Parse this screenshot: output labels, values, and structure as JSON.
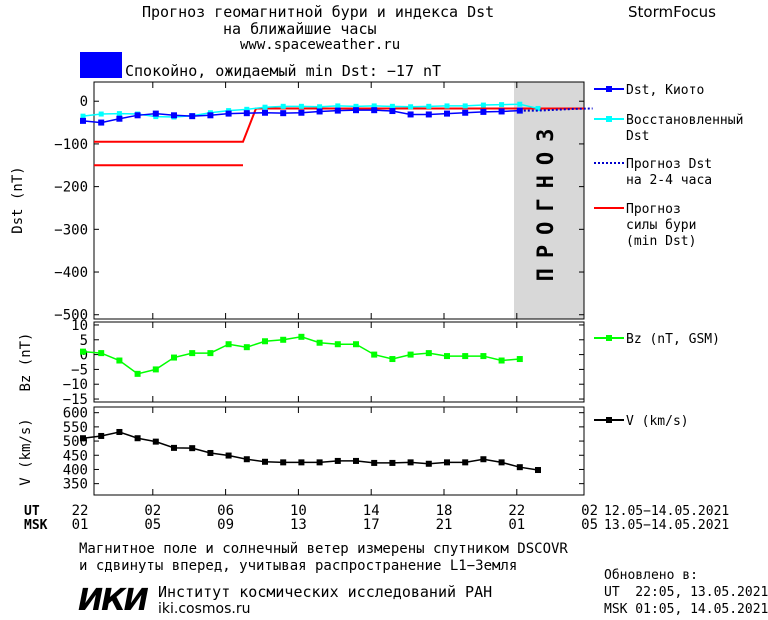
{
  "header": {
    "title_line1": "Прогноз геомагнитной бури и индекса Dst",
    "title_line2": "на ближайшие часы",
    "url": "www.spaceweather.ru",
    "brand": "StormFocus",
    "status_text": "Спокойно, ожидаемый min Dst: −17 nT",
    "status_color": "#0000ff"
  },
  "legend": {
    "dst_kyoto": "Dst, Киото",
    "restored_1": "Восстановленный",
    "restored_2": "Dst",
    "forecast_dst_1": "Прогноз Dst",
    "forecast_dst_2": "на 2-4 часа",
    "storm_1": "Прогноз",
    "storm_2": "силы бури",
    "storm_3": "(min Dst)",
    "bz": "Bz (nT, GSM)",
    "v": "V (km/s)"
  },
  "forecast_band_label": "ПРОГНОЗ",
  "time_axis": {
    "ut_label": "UT",
    "msk_label": "MSK",
    "ut_ticks": [
      "22",
      "02",
      "06",
      "10",
      "14",
      "18",
      "22",
      "02"
    ],
    "msk_ticks": [
      "01",
      "05",
      "09",
      "13",
      "17",
      "21",
      "01",
      "05"
    ],
    "ut_range": "12.05−14.05.2021",
    "msk_range": "13.05−14.05.2021"
  },
  "footer": {
    "note_line1": "Магнитное поле и солнечный ветер измерены спутником DSCOVR",
    "note_line2": "и сдвинуты вперед, учитывая распространение L1−Земля",
    "updated_label": "Обновлено в:",
    "updated_ut": "UT  22:05, 13.05.2021",
    "updated_msk": "MSK 01:05, 14.05.2021",
    "logo_text": "ИКИ",
    "institute": "Институт космических исследований РАН",
    "institute_url": "iki.cosmos.ru"
  },
  "chart_data": [
    {
      "type": "line",
      "panel": "dst",
      "ylabel": "Dst (nT)",
      "ylim": [
        -510,
        45
      ],
      "yticks": [
        0,
        -100,
        -200,
        -300,
        -400,
        -500
      ],
      "x_hours_ut": [
        22,
        23,
        0,
        1,
        2,
        3,
        4,
        5,
        6,
        7,
        8,
        9,
        10,
        11,
        12,
        13,
        14,
        15,
        16,
        17,
        18,
        19,
        20,
        21,
        22
      ],
      "series": [
        {
          "name": "Dst, Киото",
          "color": "#0000ff",
          "values": [
            -46,
            -50,
            -41,
            -33,
            -29,
            -33,
            -35,
            -33,
            -29,
            -28,
            -27,
            -28,
            -27,
            -24,
            -22,
            -21,
            -21,
            -23,
            -31,
            -31,
            -29,
            -27,
            -25,
            -24,
            -22
          ]
        },
        {
          "name": "Восстановленный Dst",
          "color": "#00ffff",
          "values": [
            -35,
            -30,
            -29,
            -30,
            -36,
            -37,
            -34,
            -27,
            -22,
            -19,
            -14,
            -12,
            -12,
            -13,
            -11,
            -12,
            -11,
            -12,
            -13,
            -12,
            -11,
            -11,
            -9,
            -8,
            -7,
            -17
          ]
        },
        {
          "name": "Прогноз Dst на 2-4 часа",
          "color": "#0000cc",
          "values": [
            -22,
            -20,
            -18,
            -17
          ]
        }
      ],
      "storm_forecast": {
        "name": "Прогноз силы бури (min Dst)",
        "color": "#ff0000",
        "level_a": -95,
        "level_b": -150,
        "level_after": -17
      }
    },
    {
      "type": "line",
      "panel": "bz",
      "ylabel": "Bz (nT)",
      "ylim": [
        -16,
        11
      ],
      "yticks": [
        10,
        5,
        0,
        -5,
        -10,
        -15
      ],
      "color": "#00ff00",
      "values": [
        1,
        0.5,
        -2,
        -6.5,
        -5,
        -1,
        0.5,
        0.5,
        3.5,
        2.5,
        4.5,
        5,
        6,
        4,
        3.5,
        3.5,
        0,
        -1.5,
        0,
        0.5,
        -0.5,
        -0.5,
        -0.5,
        -2,
        -1.5
      ]
    },
    {
      "type": "line",
      "panel": "v",
      "ylabel": "V (km/s)",
      "ylim": [
        310,
        620
      ],
      "yticks": [
        600,
        550,
        500,
        450,
        400,
        350
      ],
      "color": "#000000",
      "values": [
        510,
        518,
        532,
        510,
        498,
        476,
        475,
        458,
        449,
        436,
        427,
        425,
        425,
        425,
        430,
        430,
        423,
        423,
        425,
        420,
        425,
        425,
        436,
        425,
        408,
        398
      ]
    }
  ]
}
